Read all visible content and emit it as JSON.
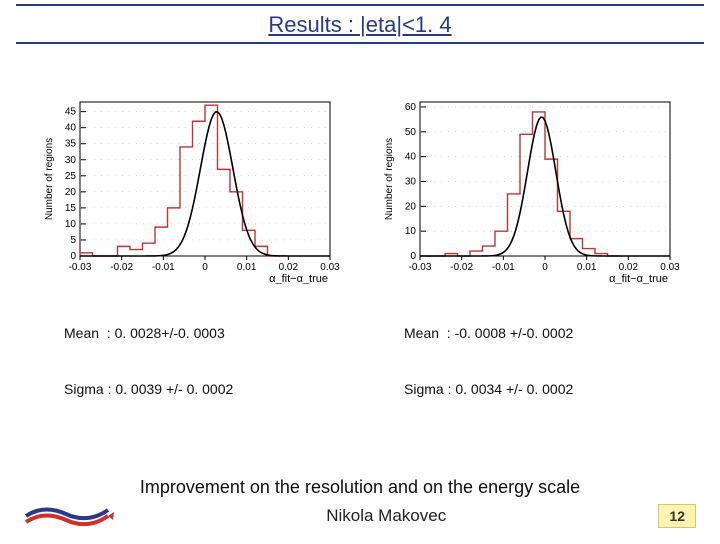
{
  "title": "Results : |eta|<1. 4",
  "charts": [
    {
      "ylabel": "Number of regions",
      "xlabel": "α_fit−α_true",
      "xlim": [
        -0.03,
        0.03
      ],
      "ylim": [
        0,
        48
      ],
      "xticks": [
        "-0.03",
        "-0.02",
        "-0.01",
        "0",
        "0.01",
        "0.02",
        "0.03"
      ],
      "yticks": [
        0,
        5,
        10,
        15,
        20,
        25,
        30,
        35,
        40,
        45
      ],
      "grid_dashed_y": [
        5,
        10,
        15,
        20,
        25,
        30,
        35,
        40,
        45
      ],
      "hist_color": "#c83232",
      "curve_color": "#000000",
      "background": "#ffffff",
      "bin_edges": [
        -0.03,
        -0.027,
        -0.024,
        -0.021,
        -0.018,
        -0.015,
        -0.012,
        -0.009,
        -0.006,
        -0.003,
        0.0,
        0.003,
        0.006,
        0.009,
        0.012,
        0.015,
        0.018
      ],
      "bin_counts": [
        1,
        0,
        0,
        3,
        2,
        4,
        9,
        15,
        34,
        42,
        47,
        27,
        20,
        8,
        3,
        0
      ],
      "gauss_center": 0.0028,
      "gauss_sigma": 0.0039,
      "gauss_peak": 45,
      "stats": {
        "mean_line": "Mean  : 0. 0028+/-0. 0003",
        "sigma_line": "Sigma : 0. 0039 +/- 0. 0002"
      }
    },
    {
      "ylabel": "Number of regions",
      "xlabel": "α_fit−α_true",
      "xlim": [
        -0.03,
        0.03
      ],
      "ylim": [
        0,
        62
      ],
      "xticks": [
        "-0.03",
        "-0.02",
        "-0.01",
        "0",
        "0.01",
        "0.02",
        "0.03"
      ],
      "yticks": [
        0,
        10,
        20,
        30,
        40,
        50,
        60
      ],
      "grid_dashed_y": [
        10,
        20,
        30,
        40,
        50,
        60
      ],
      "hist_color": "#c83232",
      "curve_color": "#000000",
      "background": "#ffffff",
      "bin_edges": [
        -0.03,
        -0.027,
        -0.024,
        -0.021,
        -0.018,
        -0.015,
        -0.012,
        -0.009,
        -0.006,
        -0.003,
        0.0,
        0.003,
        0.006,
        0.009,
        0.012,
        0.015,
        0.018
      ],
      "bin_counts": [
        0,
        0,
        1,
        0,
        2,
        4,
        10,
        25,
        49,
        58,
        39,
        18,
        7,
        3,
        1,
        0
      ],
      "gauss_center": -0.0008,
      "gauss_sigma": 0.0034,
      "gauss_peak": 56,
      "stats": {
        "mean_line": "Mean  : -0. 0008 +/-0. 0002",
        "sigma_line": "Sigma : 0. 0034 +/- 0. 0002"
      }
    }
  ],
  "improvement_text": "Improvement on the resolution and on the energy scale",
  "footer": {
    "name": "Nikola Makovec",
    "page": "12"
  },
  "logo_colors": {
    "blue": "#2a3a8a",
    "red": "#d03028"
  }
}
